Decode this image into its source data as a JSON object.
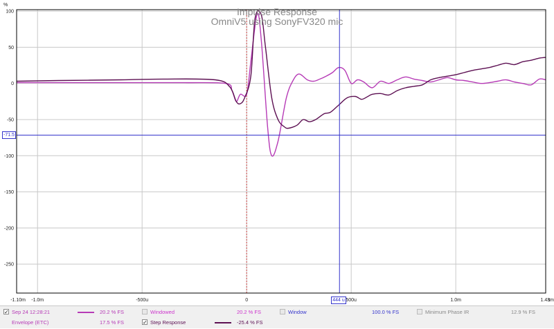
{
  "chart_data": {
    "type": "line",
    "title": "Impulse Response",
    "subtitle": "OmniV5 using SonyFV320 mic",
    "ylabel": "%",
    "xlabel": "s",
    "xlim": [
      -0.0011,
      0.00143
    ],
    "ylim": [
      -290,
      102
    ],
    "x_ticks": [
      {
        "value": -0.0011,
        "label": "-1.10m"
      },
      {
        "value": -0.001,
        "label": "-1.0m"
      },
      {
        "value": -0.0005,
        "label": "-500u"
      },
      {
        "value": 0,
        "label": "0"
      },
      {
        "value": 0.0005,
        "label": "500u"
      },
      {
        "value": 0.001,
        "label": "1.0m"
      },
      {
        "value": 0.00143,
        "label": "1.43m"
      }
    ],
    "y_ticks": [
      {
        "value": 100,
        "label": "100"
      },
      {
        "value": 50,
        "label": "50"
      },
      {
        "value": 0,
        "label": "0"
      },
      {
        "value": -50,
        "label": "-50"
      },
      {
        "value": -100,
        "label": "-100"
      },
      {
        "value": -150,
        "label": "-150"
      },
      {
        "value": -200,
        "label": "-200"
      },
      {
        "value": -250,
        "label": "-250"
      }
    ],
    "cursor": {
      "x": 0.000444,
      "y": -71.5,
      "x_label": "444 u",
      "y_label": "-71.5"
    },
    "series": [
      {
        "name": "Sep 24 12:28:21",
        "color": "#b63ab6",
        "x": [
          -0.0011,
          -0.0009,
          -0.0006,
          -0.0003,
          -0.0001,
          -7e-05,
          -5e-05,
          -3e-05,
          0,
          2e-05,
          5e-05,
          7e-05,
          0.0001,
          0.00012,
          0.00015,
          0.00019,
          0.00022,
          0.00025,
          0.00029,
          0.00032,
          0.00035,
          0.00038,
          0.00041,
          0.00044,
          0.00047,
          0.0005,
          0.00053,
          0.00056,
          0.0006,
          0.00064,
          0.00068,
          0.00072,
          0.00076,
          0.0008,
          0.00084,
          0.00088,
          0.00092,
          0.00096,
          0.001,
          0.00104,
          0.00108,
          0.00112,
          0.00116,
          0.0012,
          0.00124,
          0.00128,
          0.00132,
          0.00136,
          0.0014,
          0.00143
        ],
        "y": [
          1,
          1,
          1,
          1,
          0,
          -10,
          -25,
          -15,
          -15,
          30,
          96,
          60,
          -60,
          -100,
          -80,
          -20,
          3,
          13,
          5,
          3,
          6,
          10,
          15,
          22,
          18,
          0,
          5,
          2,
          -6,
          3,
          0,
          5,
          9,
          6,
          4,
          2,
          5,
          8,
          5,
          4,
          2,
          0,
          1,
          3,
          5,
          2,
          0,
          -2,
          6,
          5
        ]
      },
      {
        "name": "Step Response",
        "color": "#5c0f52",
        "x": [
          -0.0011,
          -0.0009,
          -0.0006,
          -0.0004,
          -0.00015,
          -8e-05,
          -5e-05,
          -3e-05,
          -1e-05,
          2e-05,
          4e-05,
          7e-05,
          9e-05,
          0.00012,
          0.00015,
          0.00018,
          0.0002,
          0.00024,
          0.00027,
          0.0003,
          0.00033,
          0.00037,
          0.0004,
          0.00044,
          0.00048,
          0.00052,
          0.00055,
          0.00058,
          0.0006,
          0.00064,
          0.00068,
          0.00072,
          0.00076,
          0.0008,
          0.00084,
          0.00088,
          0.00092,
          0.00096,
          0.001,
          0.00104,
          0.00108,
          0.00112,
          0.00116,
          0.0012,
          0.00124,
          0.00128,
          0.00132,
          0.00136,
          0.0014,
          0.00143
        ],
        "y": [
          3,
          4,
          5,
          6,
          5,
          -5,
          -25,
          -28,
          -20,
          10,
          90,
          95,
          50,
          -20,
          -50,
          -60,
          -62,
          -58,
          -50,
          -53,
          -50,
          -42,
          -40,
          -30,
          -20,
          -18,
          -22,
          -18,
          -15,
          -14,
          -16,
          -10,
          -6,
          -4,
          -2,
          5,
          8,
          10,
          12,
          15,
          18,
          20,
          22,
          25,
          28,
          26,
          30,
          32,
          35,
          36
        ]
      }
    ],
    "gate_marker_x": 0,
    "grid": true
  },
  "legend": {
    "row1": [
      {
        "label": "Sep 24 12:28:21",
        "checked": true,
        "value": "20.2 % FS",
        "color": "#b63ab6"
      },
      {
        "label": "Windowed",
        "checked": false,
        "value": "20.2 % FS",
        "color": "#cc33cc"
      },
      {
        "label": "Window",
        "checked": false,
        "value": "100.0 % FS",
        "color": "#3333cc"
      },
      {
        "label": "Minimum Phase IR",
        "checked": false,
        "value": "12.9 % FS",
        "color": "#888888"
      }
    ],
    "row2": [
      {
        "label": "Envelope (ETC)",
        "checked": true,
        "value": "17.5 % FS",
        "color": "#b63ab6"
      },
      {
        "label": "Step Response",
        "checked": true,
        "value": "-25.4 % FS",
        "color": "#5c0f52"
      }
    ]
  }
}
